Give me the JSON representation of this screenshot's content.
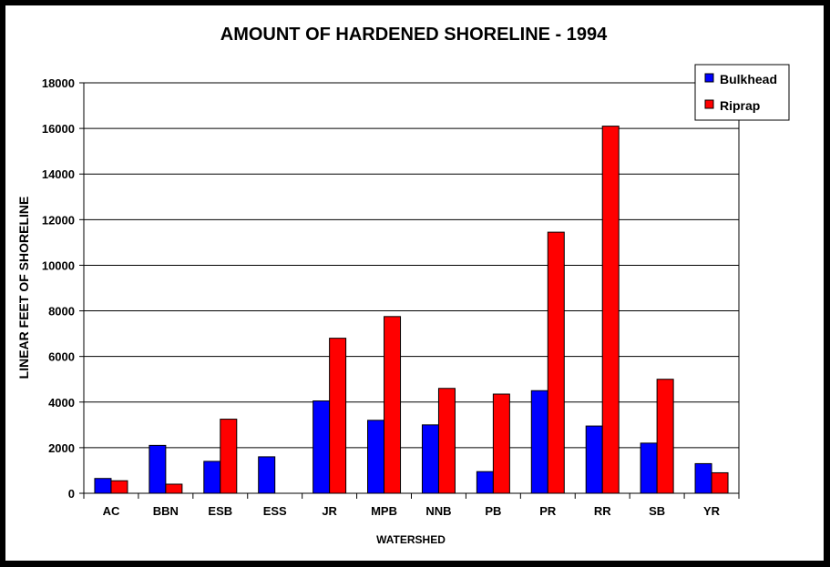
{
  "chart_data": {
    "type": "bar",
    "title": "AMOUNT OF HARDENED SHORELINE - 1994",
    "xlabel": "WATERSHED",
    "ylabel": "LINEAR FEET OF SHORELINE",
    "ylim": [
      0,
      18000
    ],
    "yticks": [
      0,
      2000,
      4000,
      6000,
      8000,
      10000,
      12000,
      14000,
      16000,
      18000
    ],
    "grid": true,
    "legend_position": "top-right",
    "categories": [
      "AC",
      "BBN",
      "ESB",
      "ESS",
      "JR",
      "MPB",
      "NNB",
      "PB",
      "PR",
      "RR",
      "SB",
      "YR"
    ],
    "series": [
      {
        "name": "Bulkhead",
        "color": "#0000FF",
        "values": [
          650,
          2100,
          1400,
          1600,
          4050,
          3200,
          3000,
          950,
          4500,
          2950,
          2200,
          1300
        ]
      },
      {
        "name": "Riprap",
        "color": "#FF0000",
        "values": [
          550,
          400,
          3250,
          0,
          6800,
          7750,
          4600,
          4350,
          11450,
          16100,
          5000,
          900
        ]
      }
    ]
  }
}
